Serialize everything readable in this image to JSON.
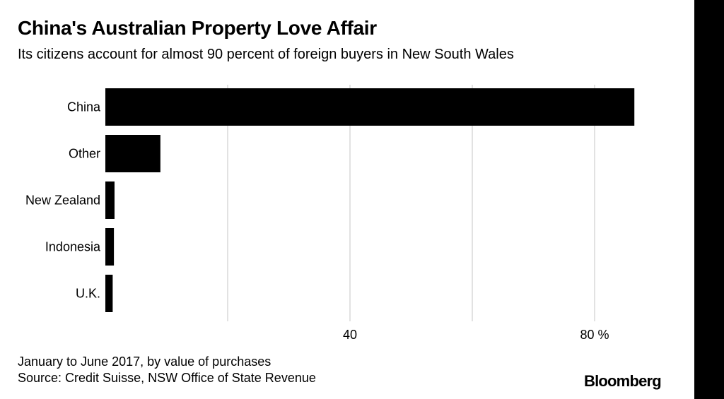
{
  "title": "China's Australian Property Love Affair",
  "subtitle": "Its citizens account for almost 90 percent of foreign buyers in New South Wales",
  "note": "January to June 2017, by value of purchases",
  "source": "Source: Credit Suisse, NSW Office of State Revenue",
  "brand": "Bloomberg",
  "colors": {
    "bar": "#000000",
    "grid": "#d9d9d9",
    "background": "#ffffff"
  },
  "chart_data": {
    "type": "bar",
    "orientation": "horizontal",
    "categories": [
      "China",
      "Other",
      "New Zealand",
      "Indonesia",
      "U.K."
    ],
    "values": [
      86.5,
      9,
      1.5,
      1.4,
      1.2
    ],
    "xlim": [
      0,
      95
    ],
    "tick_values": [
      20,
      40,
      60,
      80
    ],
    "tick_labels": [
      "",
      "40",
      "",
      "80 %"
    ],
    "grid": true,
    "legend": "none"
  }
}
